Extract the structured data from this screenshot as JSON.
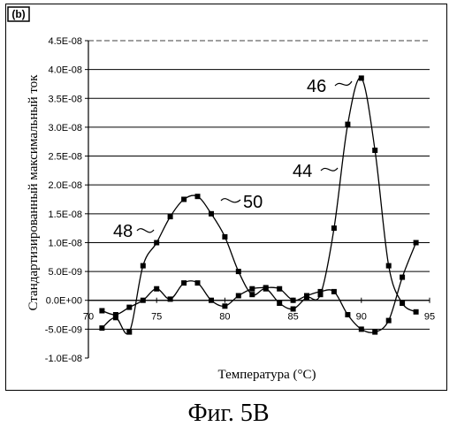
{
  "panel_label": "(b)",
  "caption": "Фиг. 5B",
  "chart_data": {
    "type": "line",
    "title": "",
    "xlabel": "Температура (°C)",
    "ylabel": "Стандартизированный максимальный ток",
    "xlim": [
      70,
      95
    ],
    "ylim": [
      -1e-08,
      4.5e-08
    ],
    "x_ticks": [
      "70",
      "75",
      "80",
      "85",
      "90",
      "95"
    ],
    "y_ticks": [
      "4.5E-08",
      "4.0E-08",
      "3.5E-08",
      "3.0E-08",
      "2.5E-08",
      "2.0E-08",
      "1.5E-08",
      "1.0E-08",
      "5.0E-09",
      "0.0E+00",
      "-5.0E-09",
      "-1.0E-08"
    ],
    "grid": "horizontal",
    "series": [
      {
        "name": "44",
        "x": [
          71,
          72,
          73,
          74,
          75,
          76,
          77,
          78,
          79,
          80,
          81,
          82,
          83,
          84,
          85,
          86,
          87,
          88,
          89,
          90,
          91,
          92,
          93,
          94
        ],
        "y": [
          -1.8e-09,
          -2.5e-09,
          -1.2e-09,
          0.0,
          2e-09,
          2e-10,
          3e-09,
          3e-09,
          0.0,
          -1e-09,
          8e-10,
          2e-09,
          2.2e-09,
          2e-09,
          0.0,
          8e-10,
          1.5e-09,
          1.5e-09,
          -2.5e-09,
          -5e-09,
          -5.5e-09,
          -3.5e-09,
          4e-09,
          1e-08
        ]
      },
      {
        "name": "46",
        "x": [
          71,
          72,
          73,
          74,
          75,
          76,
          77,
          78,
          79,
          80,
          81,
          82,
          83,
          84,
          85,
          86,
          87,
          88,
          89,
          90,
          91,
          92,
          93,
          94
        ],
        "y": [
          -4.8e-09,
          -3e-09,
          -5.5e-09,
          6e-09,
          1e-08,
          1.45e-08,
          1.75e-08,
          1.8e-08,
          1.5e-08,
          1.1e-08,
          5e-09,
          1e-09,
          2e-09,
          -5e-10,
          -1.5e-09,
          5e-10,
          1e-09,
          1.25e-08,
          3.05e-08,
          3.85e-08,
          2.6e-08,
          6e-09,
          -5e-10,
          -2e-09
        ]
      }
    ],
    "annotations": [
      "46",
      "44",
      "50",
      "48"
    ]
  }
}
